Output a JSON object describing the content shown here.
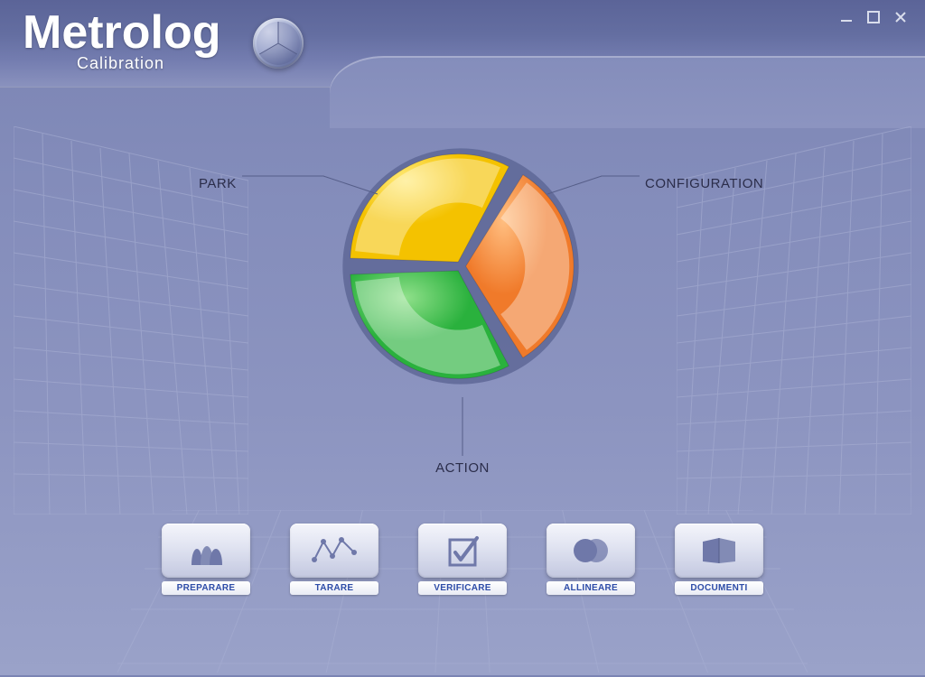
{
  "app": {
    "brand": "Metrolog",
    "subtitle": "Calibration"
  },
  "window_controls": {
    "minimize_glyph": "—",
    "maximize_glyph": "□",
    "close_glyph": "✕"
  },
  "pie": {
    "radius": 128,
    "gap_deg": 4,
    "bg_disc_color": "#5e6796",
    "bg_disc_radius": 140,
    "slices": [
      {
        "key": "park",
        "label": "PARK",
        "start_deg": 150,
        "end_deg": 270,
        "fill": "#2ab13d",
        "highlight": "#8fe08a"
      },
      {
        "key": "config",
        "label": "CONFIGURATION",
        "start_deg": 270,
        "end_deg": 390,
        "fill": "#f4c200",
        "highlight": "#ffea7a"
      },
      {
        "key": "action",
        "label": "ACTION",
        "start_deg": 30,
        "end_deg": 150,
        "fill": "#f07a2a",
        "highlight": "#ffbe80"
      }
    ],
    "label_color": "#2b2d4a",
    "label_fontsize": 15
  },
  "toolbar": {
    "icon_fill": "#6f78a9",
    "items": [
      {
        "key": "preparare",
        "label": "PREPARARE"
      },
      {
        "key": "tarare",
        "label": "TARARE"
      },
      {
        "key": "verificare",
        "label": "VERIFICARE"
      },
      {
        "key": "allineare",
        "label": "ALLINEARE"
      },
      {
        "key": "documenti",
        "label": "DOCUMENTI"
      }
    ]
  },
  "colors": {
    "bg_top": "#7b84b3",
    "bg_bottom": "#9aa2c9",
    "header_top": "#5b6498",
    "header_bottom": "#8a92be",
    "grid_line": "#9ba3cc",
    "tile_caption": "#2e4da8"
  }
}
